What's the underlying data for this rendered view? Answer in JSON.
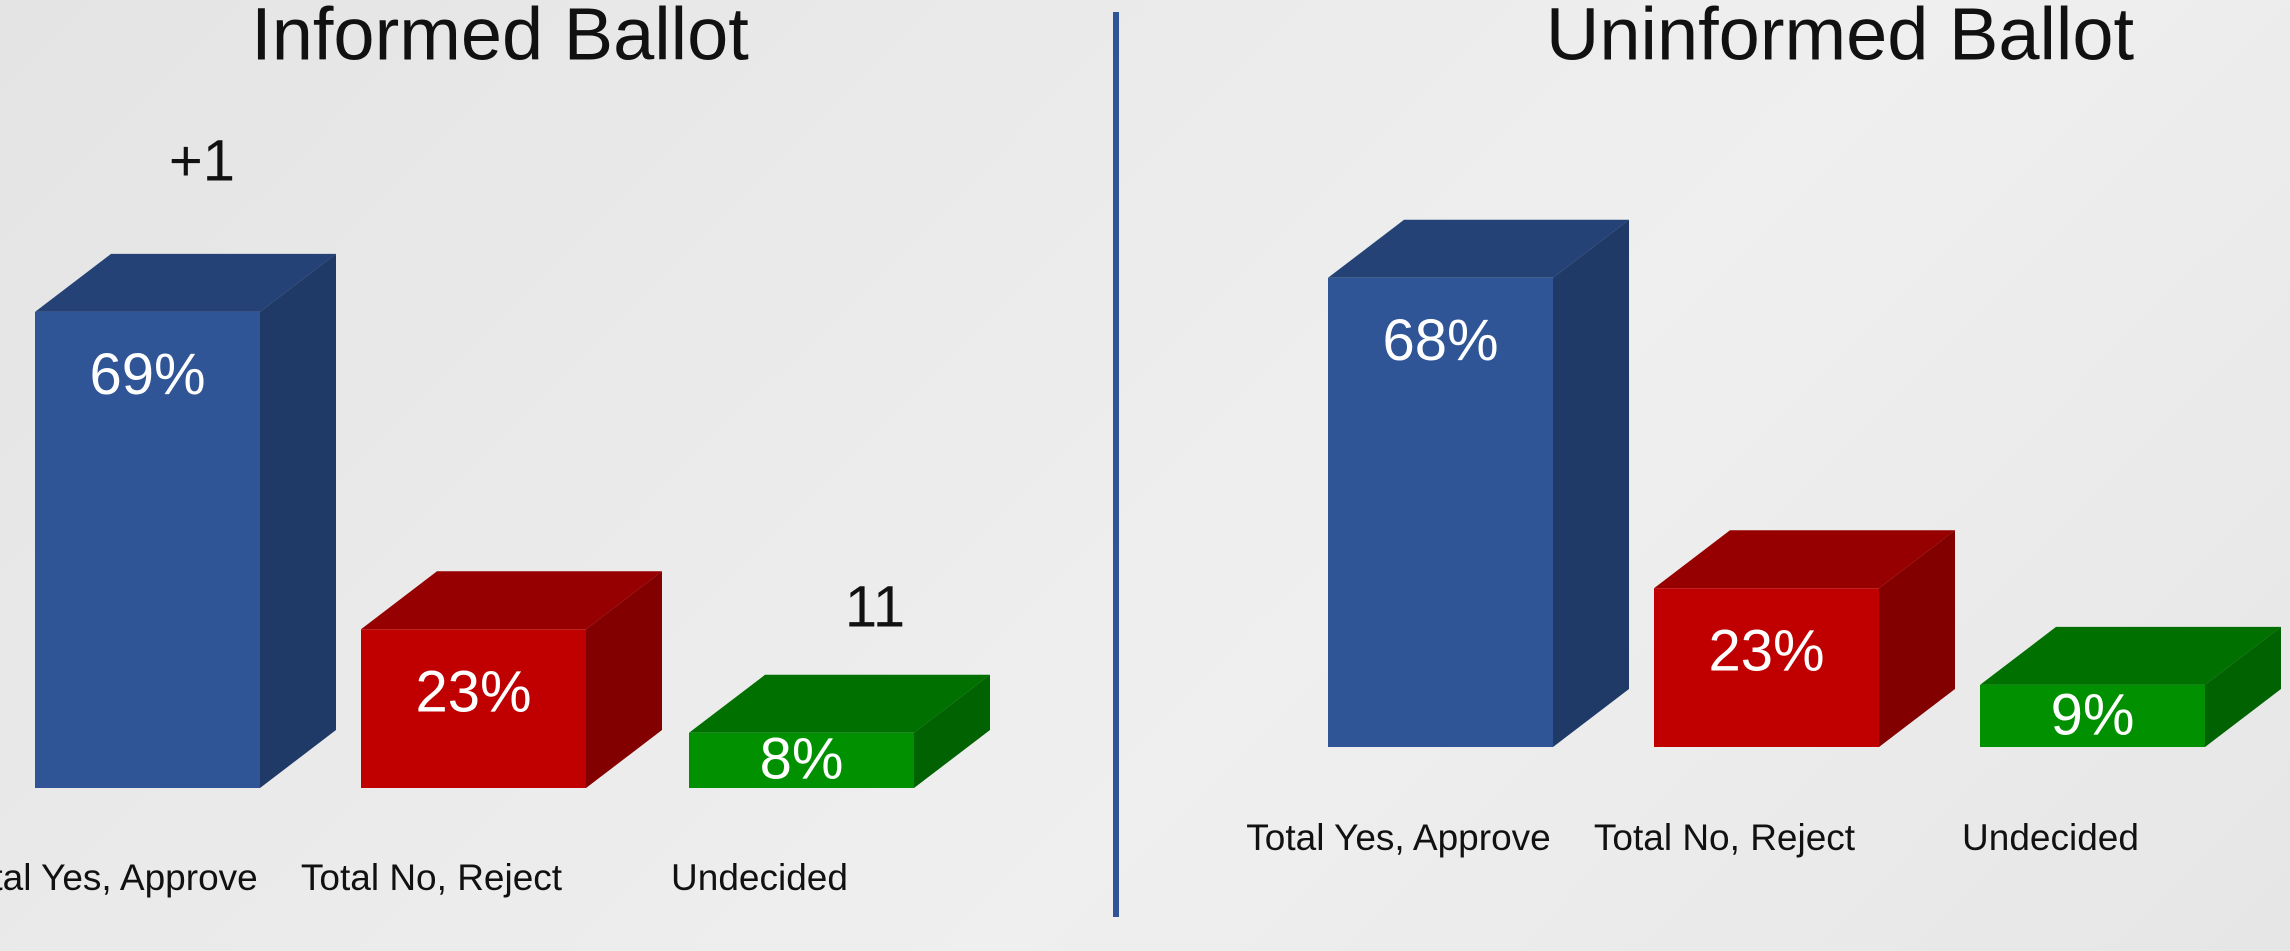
{
  "chart_data": [
    {
      "type": "bar3d",
      "title": "Informed Ballot",
      "categories": [
        "Total Yes, Approve",
        "Total No, Reject",
        "Undecided"
      ],
      "values": [
        69,
        23,
        8
      ],
      "value_labels": [
        "69%",
        "23%",
        "8%"
      ],
      "colors": [
        "#2f5597",
        "#c00000",
        "#009000"
      ],
      "annotations": [
        "+1",
        "11"
      ]
    },
    {
      "type": "bar3d",
      "title": "Uninformed Ballot",
      "categories": [
        "Total Yes, Approve",
        "Total No, Reject",
        "Undecided"
      ],
      "values": [
        68,
        23,
        9
      ],
      "value_labels": [
        "68%",
        "23%",
        "9%"
      ],
      "colors": [
        "#2f5597",
        "#c00000",
        "#009000"
      ]
    }
  ]
}
